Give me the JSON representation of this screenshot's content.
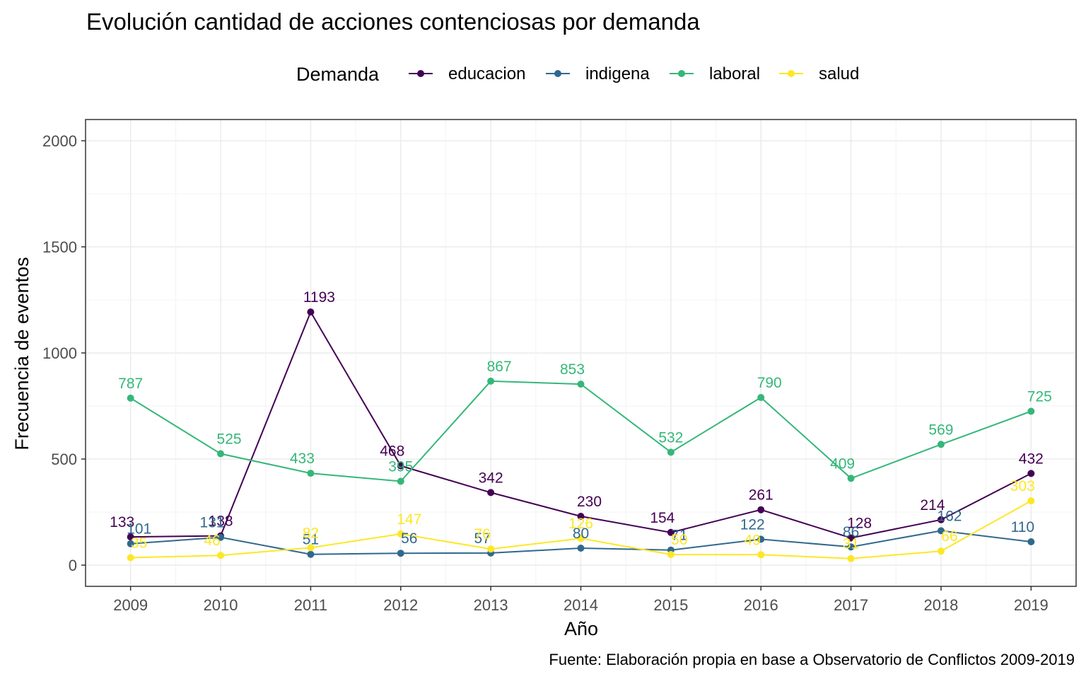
{
  "chart_data": {
    "type": "line",
    "title": "Evolución cantidad de acciones contenciosas por demanda",
    "xlabel": "Año",
    "ylabel": "Frecuencia de eventos",
    "caption": "Fuente: Elaboración propia en base a Observatorio de Conflictos 2009-2019",
    "legend_title": "Demanda",
    "legend_position": "top",
    "grid": true,
    "x": [
      2009,
      2010,
      2011,
      2012,
      2013,
      2014,
      2015,
      2016,
      2017,
      2018,
      2019
    ],
    "xlim": [
      2008.5,
      2019.5
    ],
    "ylim": [
      -100,
      2100
    ],
    "yticks": [
      0,
      500,
      1000,
      1500,
      2000
    ],
    "series": [
      {
        "name": "educacion",
        "color": "#440154",
        "values": [
          133,
          138,
          1193,
          468,
          342,
          230,
          154,
          261,
          128,
          214,
          432
        ]
      },
      {
        "name": "indigena",
        "color": "#31688E",
        "values": [
          101,
          131,
          51,
          56,
          57,
          80,
          71,
          122,
          86,
          162,
          110
        ]
      },
      {
        "name": "laboral",
        "color": "#35B779",
        "values": [
          787,
          525,
          433,
          395,
          867,
          853,
          532,
          790,
          409,
          569,
          725
        ]
      },
      {
        "name": "salud",
        "color": "#FDE725",
        "values": [
          35,
          46,
          82,
          147,
          76,
          126,
          50,
          49,
          31,
          66,
          303
        ]
      }
    ]
  }
}
